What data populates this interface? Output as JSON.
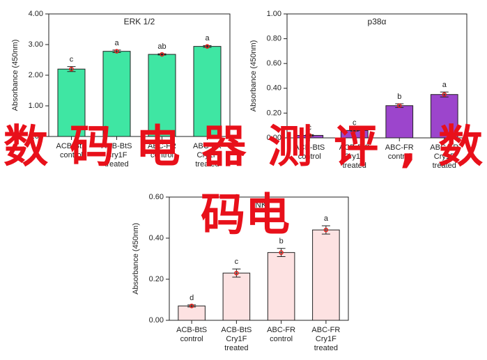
{
  "chart_data": [
    {
      "type": "bar",
      "title": "ERK 1/2",
      "ylabel": "Absorbance (450nm)",
      "categories": [
        [
          "ACB-BtS",
          "control"
        ],
        [
          "ACB-BtS",
          "Cry1F",
          "treated"
        ],
        [
          "ABC-FR",
          "control"
        ],
        [
          "ABC-FR",
          "Cry1F",
          "treated"
        ]
      ],
      "values": [
        2.2,
        2.78,
        2.68,
        2.94
      ],
      "errors": [
        0.08,
        0.04,
        0.02,
        0.03
      ],
      "letters": [
        "c",
        "a",
        "ab",
        "a"
      ],
      "color": "#3fe6a3",
      "ylim": [
        0,
        4
      ],
      "yticks": [
        {
          "value": 0,
          "label": "0.00"
        },
        {
          "value": 1,
          "label": "1.00"
        },
        {
          "value": 2,
          "label": "2.00"
        },
        {
          "value": 3,
          "label": "3.00"
        },
        {
          "value": 4,
          "label": "4.00"
        }
      ]
    },
    {
      "type": "bar",
      "title": "p38α",
      "ylabel": "Absorbance (450nm)",
      "categories": [
        [
          "ACB-BtS",
          "control"
        ],
        [
          "ACB-BtS",
          "Cry1F",
          "treated"
        ],
        [
          "ABC-FR",
          "control"
        ],
        [
          "ABC-FR",
          "Cry1F",
          "treated"
        ]
      ],
      "values": [
        0.02,
        0.06,
        0.26,
        0.35
      ],
      "errors": [
        0.005,
        0.005,
        0.015,
        0.02
      ],
      "letters": [
        "c",
        "c",
        "b",
        "a"
      ],
      "color": "#9c45cc",
      "ylim": [
        0,
        1
      ],
      "yticks": [
        {
          "value": 0,
          "label": "0.00"
        },
        {
          "value": 0.2,
          "label": "0.20"
        },
        {
          "value": 0.4,
          "label": "0.40"
        },
        {
          "value": 0.6,
          "label": "0.60"
        },
        {
          "value": 0.8,
          "label": "0.80"
        },
        {
          "value": 1,
          "label": "1.00"
        }
      ]
    },
    {
      "type": "bar",
      "title": "JNK",
      "ylabel": "Absorbance (450nm)",
      "categories": [
        [
          "ACB-BtS",
          "control"
        ],
        [
          "ACB-BtS",
          "Cry1F",
          "treated"
        ],
        [
          "ABC-FR",
          "control"
        ],
        [
          "ABC-FR",
          "Cry1F",
          "treated"
        ]
      ],
      "values": [
        0.07,
        0.23,
        0.33,
        0.44
      ],
      "errors": [
        0.005,
        0.02,
        0.02,
        0.02
      ],
      "letters": [
        "d",
        "c",
        "b",
        "a"
      ],
      "color": "#fde2e2",
      "ylim": [
        0,
        0.6
      ],
      "yticks": [
        {
          "value": 0,
          "label": "0.00"
        },
        {
          "value": 0.2,
          "label": "0.20"
        },
        {
          "value": 0.4,
          "label": "0.40"
        },
        {
          "value": 0.6,
          "label": "0.60"
        }
      ]
    }
  ],
  "overlay_text": [
    "数码电器测评,数",
    "码电"
  ]
}
